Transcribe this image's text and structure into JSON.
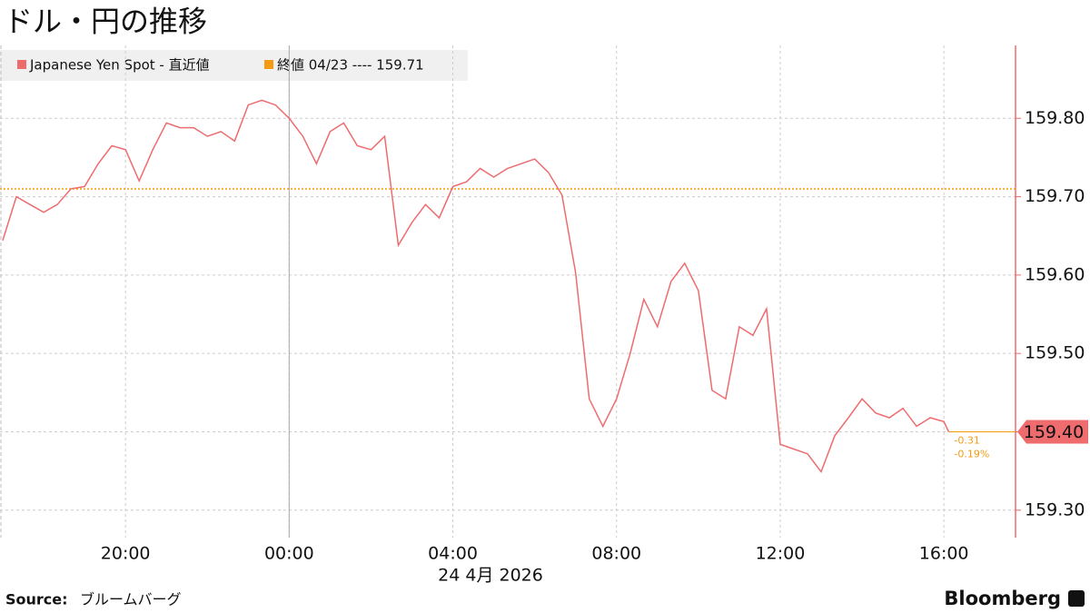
{
  "chart_data": {
    "type": "line",
    "title": "ドル・円の推移",
    "x_label": "24 4月 2026",
    "source_label": "Source:",
    "source": "ブルームバーグ",
    "brand": "Bloomberg",
    "x": [
      "2026-04-23T17:00",
      "2026-04-23T17:20",
      "2026-04-23T17:40",
      "2026-04-23T18:00",
      "2026-04-23T18:20",
      "2026-04-23T18:40",
      "2026-04-23T19:00",
      "2026-04-23T19:20",
      "2026-04-23T19:40",
      "2026-04-23T20:00",
      "2026-04-23T20:20",
      "2026-04-23T20:40",
      "2026-04-23T21:00",
      "2026-04-23T21:20",
      "2026-04-23T21:40",
      "2026-04-23T22:00",
      "2026-04-23T22:20",
      "2026-04-23T22:40",
      "2026-04-23T23:00",
      "2026-04-23T23:20",
      "2026-04-23T23:40",
      "2026-04-24T00:00",
      "2026-04-24T00:20",
      "2026-04-24T00:40",
      "2026-04-24T01:00",
      "2026-04-24T01:20",
      "2026-04-24T01:40",
      "2026-04-24T02:00",
      "2026-04-24T02:20",
      "2026-04-24T02:40",
      "2026-04-24T03:00",
      "2026-04-24T03:20",
      "2026-04-24T03:40",
      "2026-04-24T04:00",
      "2026-04-24T04:20",
      "2026-04-24T04:40",
      "2026-04-24T05:00",
      "2026-04-24T05:20",
      "2026-04-24T05:40",
      "2026-04-24T06:00",
      "2026-04-24T06:20",
      "2026-04-24T06:40",
      "2026-04-24T07:00",
      "2026-04-24T07:20",
      "2026-04-24T07:40",
      "2026-04-24T08:00",
      "2026-04-24T08:20",
      "2026-04-24T08:40",
      "2026-04-24T09:00",
      "2026-04-24T09:20",
      "2026-04-24T09:40",
      "2026-04-24T10:00",
      "2026-04-24T10:20",
      "2026-04-24T10:40",
      "2026-04-24T11:00",
      "2026-04-24T11:20",
      "2026-04-24T11:40",
      "2026-04-24T12:00",
      "2026-04-24T12:20",
      "2026-04-24T12:40",
      "2026-04-24T13:00",
      "2026-04-24T13:20",
      "2026-04-24T13:40",
      "2026-04-24T14:00",
      "2026-04-24T14:20",
      "2026-04-24T14:40",
      "2026-04-24T15:00",
      "2026-04-24T15:20",
      "2026-04-24T15:40",
      "2026-04-24T16:00",
      "2026-04-24T16:07"
    ],
    "series": [
      {
        "name": "Japanese Yen Spot - 直近値",
        "color": "#ee6b6e",
        "values": [
          159.644,
          159.7,
          159.69,
          159.68,
          159.69,
          159.71,
          159.713,
          159.742,
          159.765,
          159.76,
          159.72,
          159.76,
          159.794,
          159.788,
          159.788,
          159.777,
          159.783,
          159.771,
          159.817,
          159.823,
          159.817,
          159.8,
          159.777,
          159.742,
          159.783,
          159.794,
          159.765,
          159.76,
          159.777,
          159.638,
          159.667,
          159.69,
          159.673,
          159.713,
          159.719,
          159.736,
          159.725,
          159.736,
          159.742,
          159.748,
          159.731,
          159.702,
          159.603,
          159.442,
          159.407,
          159.442,
          159.5,
          159.569,
          159.534,
          159.592,
          159.615,
          159.58,
          159.453,
          159.442,
          159.534,
          159.523,
          159.557,
          159.384,
          159.378,
          159.372,
          159.349,
          159.395,
          159.418,
          159.442,
          159.424,
          159.418,
          159.43,
          159.407,
          159.418,
          159.413,
          159.4
        ],
        "last_value_label": "159.40",
        "change": "-0.31",
        "change_pct": "-0.19%"
      }
    ],
    "reference_line": {
      "label": "終値 04/23 ---- 159.71",
      "value": 159.71,
      "color": "#f39c12"
    },
    "xlim": [
      "2026-04-23T16:56",
      "2026-04-24T17:45"
    ],
    "xticks": [
      {
        "value": "2026-04-23T20:00",
        "label": "20:00"
      },
      {
        "value": "2026-04-24T00:00",
        "label": "00:00"
      },
      {
        "value": "2026-04-24T04:00",
        "label": "04:00"
      },
      {
        "value": "2026-04-24T08:00",
        "label": "08:00"
      },
      {
        "value": "2026-04-24T12:00",
        "label": "12:00"
      },
      {
        "value": "2026-04-24T16:00",
        "label": "16:00"
      }
    ],
    "ylim": [
      159.265,
      159.893
    ],
    "yticks": [
      {
        "value": 159.3,
        "label": "159.30"
      },
      {
        "value": 159.4,
        "label": "159.40"
      },
      {
        "value": 159.5,
        "label": "159.50"
      },
      {
        "value": 159.6,
        "label": "159.60"
      },
      {
        "value": 159.7,
        "label": "159.70"
      },
      {
        "value": 159.8,
        "label": "159.80"
      }
    ],
    "grid": true
  }
}
